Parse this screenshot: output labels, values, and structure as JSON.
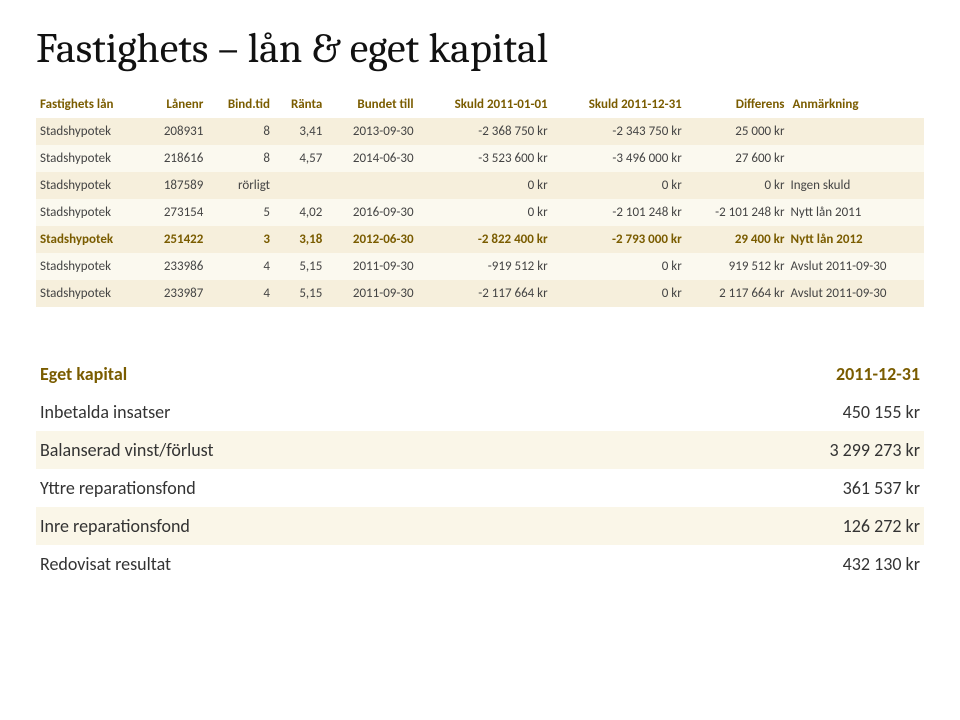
{
  "title": "Fastighets – lån & eget kapital",
  "loan_table": {
    "headers": {
      "c0": "Fastighets lån",
      "c1": "Lånenr",
      "c2": "Bind.tid",
      "c3": "Ränta",
      "c4": "Bundet till",
      "c5": "Skuld 2011-01-01",
      "c6": "Skuld 2011-12-31",
      "c7": "Differens",
      "c8": "Anmärkning"
    },
    "rows": [
      {
        "lender": "Stadshypotek",
        "nr": "208931",
        "bind": "8",
        "rate": "3,41",
        "until": "2013-09-30",
        "s1": "-2 368 750 kr",
        "s2": "-2 343 750 kr",
        "diff": "25 000 kr",
        "rem": "",
        "style": "odd"
      },
      {
        "lender": "Stadshypotek",
        "nr": "218616",
        "bind": "8",
        "rate": "4,57",
        "until": "2014-06-30",
        "s1": "-3 523 600 kr",
        "s2": "-3 496 000 kr",
        "diff": "27 600 kr",
        "rem": "",
        "style": "even"
      },
      {
        "lender": "Stadshypotek",
        "nr": "187589",
        "bind": "rörligt",
        "rate": "",
        "until": "",
        "s1": "0 kr",
        "s2": "0 kr",
        "diff": "0 kr",
        "rem": "Ingen skuld",
        "style": "odd"
      },
      {
        "lender": "Stadshypotek",
        "nr": "273154",
        "bind": "5",
        "rate": "4,02",
        "until": "2016-09-30",
        "s1": "0 kr",
        "s2": "-2 101 248 kr",
        "diff": "-2 101 248 kr",
        "rem": "Nytt lån 2011",
        "style": "even"
      },
      {
        "lender": "Stadshypotek",
        "nr": "251422",
        "bind": "3",
        "rate": "3,18",
        "until": "2012-06-30",
        "s1": "-2 822 400 kr",
        "s2": "-2 793 000 kr",
        "diff": "29 400 kr",
        "rem": "Nytt lån 2012",
        "style": "bold"
      },
      {
        "lender": "Stadshypotek",
        "nr": "233986",
        "bind": "4",
        "rate": "5,15",
        "until": "2011-09-30",
        "s1": "-919 512 kr",
        "s2": "0 kr",
        "diff": "919 512 kr",
        "rem": "Avslut 2011-09-30",
        "style": "even"
      },
      {
        "lender": "Stadshypotek",
        "nr": "233987",
        "bind": "4",
        "rate": "5,15",
        "until": "2011-09-30",
        "s1": "-2 117 664 kr",
        "s2": "0 kr",
        "diff": "2 117 664 kr",
        "rem": "Avslut 2011-09-30",
        "style": "odd"
      }
    ]
  },
  "equity_table": {
    "header": {
      "title": "Eget kapital",
      "date": "2011-12-31"
    },
    "rows": [
      {
        "label": "Inbetalda insatser",
        "value": "450 155 kr",
        "alt": false
      },
      {
        "label": "Balanserad vinst/förlust",
        "value": "3 299 273 kr",
        "alt": true
      },
      {
        "label": "Yttre reparationsfond",
        "value": "361 537 kr",
        "alt": false
      },
      {
        "label": "Inre reparationsfond",
        "value": "126 272 kr",
        "alt": true
      },
      {
        "label": "Redovisat resultat",
        "value": "432 130 kr",
        "alt": false
      }
    ]
  },
  "colors": {
    "heading": "#7a5c00",
    "row_odd": "#f6efdc",
    "row_even": "#fbf9ef",
    "equity_alt": "#faf6e8"
  }
}
